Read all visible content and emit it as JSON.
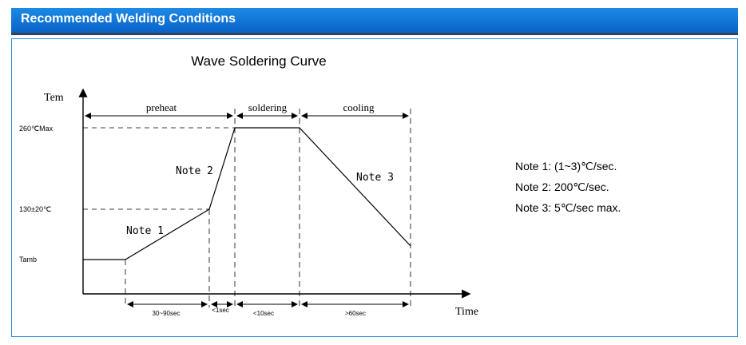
{
  "header": {
    "title": "Recommended Welding Conditions"
  },
  "diagram": {
    "title": "Wave Soldering Curve",
    "y_axis_label": "Tem",
    "x_axis_label": "Time",
    "y_labels": {
      "peak": "260℃Max",
      "mid": "130±20℃",
      "base": "Tamb"
    },
    "phases": {
      "preheat": "preheat",
      "soldering": "soldering",
      "cooling": "cooling"
    },
    "curve_notes": {
      "n1": "Note 1",
      "n2": "Note 2",
      "n3": "Note 3"
    },
    "durations": {
      "d1": "30~90sec",
      "d2": "<1sec",
      "d3": "<10sec",
      "d4": ">60sec"
    }
  },
  "notes": [
    "Note 1: (1~3)℃/sec.",
    "Note 2: 200℃/sec.",
    "Note 3: 5℃/sec max."
  ]
}
